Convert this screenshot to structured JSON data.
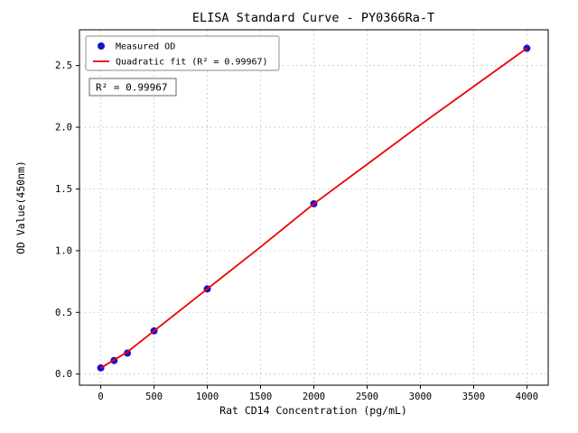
{
  "chart_data": {
    "type": "scatter",
    "title": "ELISA Standard Curve - PY0366Ra-T",
    "xlabel": "Rat CD14 Concentration (pg/mL)",
    "ylabel": "OD Value(450nm)",
    "xlim": [
      -200,
      4200
    ],
    "ylim": [
      -0.09,
      2.79
    ],
    "xticks": [
      0,
      500,
      1000,
      1500,
      2000,
      2500,
      3000,
      3500,
      4000
    ],
    "xtick_labels": [
      "0",
      "500",
      "1000",
      "1500",
      "2000",
      "2500",
      "3000",
      "3500",
      "4000"
    ],
    "yticks": [
      0.0,
      0.5,
      1.0,
      1.5,
      2.0,
      2.5
    ],
    "ytick_labels": [
      "0.0",
      "0.5",
      "1.0",
      "1.5",
      "2.0",
      "2.5"
    ],
    "grid": true,
    "legend_position": "upper left",
    "annotation": "R² = 0.99967",
    "series": [
      {
        "name": "Measured OD",
        "type": "scatter",
        "color": "#1414cc",
        "points": [
          [
            0,
            0.05
          ],
          [
            125,
            0.11
          ],
          [
            250,
            0.17
          ],
          [
            500,
            0.35
          ],
          [
            1000,
            0.69
          ],
          [
            2000,
            1.38
          ],
          [
            4000,
            2.64
          ]
        ]
      },
      {
        "name": "Quadratic fit (R² = 0.99967)",
        "type": "line",
        "color": "#ee0000",
        "points": [
          [
            0,
            0.05
          ],
          [
            250,
            0.18
          ],
          [
            500,
            0.35
          ],
          [
            1000,
            0.69
          ],
          [
            1500,
            1.03
          ],
          [
            2000,
            1.38
          ],
          [
            2500,
            1.7
          ],
          [
            3000,
            2.02
          ],
          [
            3500,
            2.33
          ],
          [
            4000,
            2.64
          ]
        ]
      }
    ]
  }
}
